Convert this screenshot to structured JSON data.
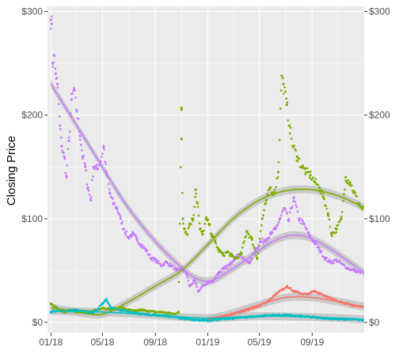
{
  "chart_data": {
    "type": "scatter",
    "title": "",
    "xlabel": "",
    "ylabel": "Closing Price",
    "x_ticks": [
      {
        "date": "2018-01-01",
        "label": "01/18"
      },
      {
        "date": "2018-05-01",
        "label": "05/18"
      },
      {
        "date": "2018-09-01",
        "label": "09/18"
      },
      {
        "date": "2019-01-01",
        "label": "01/19"
      },
      {
        "date": "2019-05-01",
        "label": "05/19"
      },
      {
        "date": "2019-09-01",
        "label": "09/19"
      }
    ],
    "y_ticks": [
      {
        "value": 0,
        "label": "$0"
      },
      {
        "value": 100,
        "label": "$100"
      },
      {
        "value": 200,
        "label": "$200"
      },
      {
        "value": 300,
        "label": "$300"
      }
    ],
    "xlim": [
      "2017-12-24",
      "2019-12-31"
    ],
    "ylim": [
      -10,
      305
    ],
    "secondary_y_axis": true,
    "grid": true,
    "legend": "none",
    "smooth_band_color": "#bdbdbd",
    "panel_background": "#ebebeb",
    "series": [
      {
        "color": "#c77cff",
        "points": [
          [
            "2018-01-01",
            292
          ],
          [
            "2018-01-03",
            288
          ],
          [
            "2018-01-05",
            250
          ],
          [
            "2018-01-08",
            258
          ],
          [
            "2018-01-12",
            240
          ],
          [
            "2018-01-16",
            230
          ],
          [
            "2018-01-22",
            190
          ],
          [
            "2018-01-26",
            170
          ],
          [
            "2018-02-01",
            160
          ],
          [
            "2018-02-06",
            140
          ],
          [
            "2018-02-12",
            175
          ],
          [
            "2018-02-18",
            215
          ],
          [
            "2018-02-24",
            225
          ],
          [
            "2018-03-02",
            205
          ],
          [
            "2018-03-10",
            180
          ],
          [
            "2018-03-16",
            160
          ],
          [
            "2018-03-22",
            150
          ],
          [
            "2018-03-28",
            130
          ],
          [
            "2018-04-04",
            118
          ],
          [
            "2018-04-10",
            150
          ],
          [
            "2018-04-18",
            148
          ],
          [
            "2018-04-26",
            155
          ],
          [
            "2018-05-04",
            170
          ],
          [
            "2018-05-10",
            145
          ],
          [
            "2018-05-18",
            125
          ],
          [
            "2018-05-26",
            115
          ],
          [
            "2018-06-04",
            110
          ],
          [
            "2018-06-12",
            100
          ],
          [
            "2018-06-20",
            90
          ],
          [
            "2018-06-30",
            82
          ],
          [
            "2018-07-10",
            85
          ],
          [
            "2018-07-20",
            80
          ],
          [
            "2018-07-30",
            75
          ],
          [
            "2018-08-10",
            70
          ],
          [
            "2018-08-22",
            62
          ],
          [
            "2018-09-02",
            60
          ],
          [
            "2018-09-14",
            55
          ],
          [
            "2018-09-26",
            58
          ],
          [
            "2018-10-08",
            55
          ],
          [
            "2018-10-20",
            50
          ],
          [
            "2018-11-01",
            52
          ],
          [
            "2018-11-12",
            48
          ],
          [
            "2018-11-20",
            35
          ],
          [
            "2018-12-01",
            40
          ],
          [
            "2018-12-10",
            30
          ],
          [
            "2018-12-20",
            35
          ],
          [
            "2019-01-02",
            38
          ],
          [
            "2019-01-14",
            40
          ],
          [
            "2019-01-26",
            48
          ],
          [
            "2019-02-08",
            52
          ],
          [
            "2019-02-20",
            55
          ],
          [
            "2019-03-04",
            62
          ],
          [
            "2019-03-16",
            65
          ],
          [
            "2019-03-28",
            60
          ],
          [
            "2019-04-10",
            58
          ],
          [
            "2019-04-22",
            70
          ],
          [
            "2019-05-04",
            78
          ],
          [
            "2019-05-16",
            80
          ],
          [
            "2019-05-28",
            85
          ],
          [
            "2019-06-08",
            90
          ],
          [
            "2019-06-18",
            100
          ],
          [
            "2019-06-28",
            110
          ],
          [
            "2019-07-08",
            98
          ],
          [
            "2019-07-20",
            120
          ],
          [
            "2019-08-01",
            100
          ],
          [
            "2019-08-12",
            95
          ],
          [
            "2019-08-24",
            85
          ],
          [
            "2019-09-05",
            78
          ],
          [
            "2019-09-18",
            70
          ],
          [
            "2019-10-01",
            62
          ],
          [
            "2019-10-14",
            58
          ],
          [
            "2019-10-28",
            60
          ],
          [
            "2019-11-10",
            56
          ],
          [
            "2019-11-24",
            52
          ],
          [
            "2019-12-08",
            50
          ],
          [
            "2019-12-22",
            48
          ]
        ],
        "trend": [
          [
            "2018-01-01",
            230
          ],
          [
            "2018-04-01",
            170
          ],
          [
            "2018-07-01",
            110
          ],
          [
            "2018-10-01",
            65
          ],
          [
            "2018-12-20",
            40
          ],
          [
            "2019-03-01",
            52
          ],
          [
            "2019-06-01",
            78
          ],
          [
            "2019-08-01",
            84
          ],
          [
            "2019-10-01",
            74
          ],
          [
            "2019-12-31",
            48
          ]
        ]
      },
      {
        "color": "#7cae00",
        "points": [
          [
            "2018-01-01",
            18
          ],
          [
            "2018-01-10",
            15
          ],
          [
            "2018-01-20",
            12
          ],
          [
            "2018-02-01",
            10
          ],
          [
            "2018-02-15",
            12
          ],
          [
            "2018-03-01",
            10
          ],
          [
            "2018-03-15",
            11
          ],
          [
            "2018-04-01",
            10
          ],
          [
            "2018-04-15",
            12
          ],
          [
            "2018-05-01",
            14
          ],
          [
            "2018-05-15",
            13
          ],
          [
            "2018-06-01",
            13
          ],
          [
            "2018-06-15",
            14
          ],
          [
            "2018-07-01",
            12
          ],
          [
            "2018-07-15",
            11
          ],
          [
            "2018-08-01",
            12
          ],
          [
            "2018-08-15",
            11
          ],
          [
            "2018-09-01",
            10
          ],
          [
            "2018-09-15",
            10
          ],
          [
            "2018-10-01",
            9
          ],
          [
            "2018-10-15",
            8
          ],
          [
            "2018-10-25",
            10
          ],
          [
            "2018-11-01",
            207
          ],
          [
            "2018-11-01",
            177
          ],
          [
            "2018-11-04",
            100
          ],
          [
            "2018-11-08",
            90
          ],
          [
            "2018-11-14",
            85
          ],
          [
            "2018-11-20",
            95
          ],
          [
            "2018-11-28",
            100
          ],
          [
            "2018-12-04",
            128
          ],
          [
            "2018-12-08",
            115
          ],
          [
            "2018-12-14",
            90
          ],
          [
            "2018-12-20",
            85
          ],
          [
            "2018-12-28",
            100
          ],
          [
            "2019-01-04",
            95
          ],
          [
            "2019-01-10",
            85
          ],
          [
            "2019-01-18",
            78
          ],
          [
            "2019-01-26",
            70
          ],
          [
            "2019-02-06",
            65
          ],
          [
            "2019-02-16",
            68
          ],
          [
            "2019-02-26",
            64
          ],
          [
            "2019-03-08",
            62
          ],
          [
            "2019-03-20",
            66
          ],
          [
            "2019-04-02",
            88
          ],
          [
            "2019-04-14",
            80
          ],
          [
            "2019-04-26",
            62
          ],
          [
            "2019-05-08",
            100
          ],
          [
            "2019-05-16",
            115
          ],
          [
            "2019-05-26",
            130
          ],
          [
            "2019-06-06",
            125
          ],
          [
            "2019-06-14",
            145
          ],
          [
            "2019-06-22",
            238
          ],
          [
            "2019-06-26",
            230
          ],
          [
            "2019-07-04",
            210
          ],
          [
            "2019-07-10",
            190
          ],
          [
            "2019-07-18",
            170
          ],
          [
            "2019-07-28",
            160
          ],
          [
            "2019-08-08",
            150
          ],
          [
            "2019-08-18",
            145
          ],
          [
            "2019-08-28",
            142
          ],
          [
            "2019-09-08",
            135
          ],
          [
            "2019-09-18",
            130
          ],
          [
            "2019-09-28",
            120
          ],
          [
            "2019-10-08",
            105
          ],
          [
            "2019-10-16",
            85
          ],
          [
            "2019-10-28",
            90
          ],
          [
            "2019-11-08",
            100
          ],
          [
            "2019-11-18",
            140
          ],
          [
            "2019-11-28",
            135
          ],
          [
            "2019-12-08",
            125
          ],
          [
            "2019-12-18",
            115
          ],
          [
            "2019-12-26",
            110
          ]
        ],
        "trend": [
          [
            "2018-01-01",
            14
          ],
          [
            "2018-03-01",
            10
          ],
          [
            "2018-05-01",
            8
          ],
          [
            "2018-07-01",
            20
          ],
          [
            "2018-09-01",
            35
          ],
          [
            "2018-11-01",
            50
          ],
          [
            "2019-01-01",
            75
          ],
          [
            "2019-03-01",
            100
          ],
          [
            "2019-05-01",
            118
          ],
          [
            "2019-07-01",
            127
          ],
          [
            "2019-09-01",
            128
          ],
          [
            "2019-11-01",
            122
          ],
          [
            "2019-12-31",
            111
          ]
        ]
      },
      {
        "color": "#f8766d",
        "points": [
          [
            "2019-01-02",
            3
          ],
          [
            "2019-02-01",
            5
          ],
          [
            "2019-03-01",
            8
          ],
          [
            "2019-04-01",
            12
          ],
          [
            "2019-05-01",
            16
          ],
          [
            "2019-05-20",
            20
          ],
          [
            "2019-06-10",
            28
          ],
          [
            "2019-06-25",
            32
          ],
          [
            "2019-07-05",
            35
          ],
          [
            "2019-07-20",
            30
          ],
          [
            "2019-08-05",
            28
          ],
          [
            "2019-08-20",
            27
          ],
          [
            "2019-09-05",
            30
          ],
          [
            "2019-09-20",
            28
          ],
          [
            "2019-10-05",
            25
          ],
          [
            "2019-10-20",
            22
          ],
          [
            "2019-11-05",
            20
          ],
          [
            "2019-11-20",
            18
          ],
          [
            "2019-12-05",
            16
          ],
          [
            "2019-12-25",
            15
          ]
        ],
        "trend": [
          [
            "2019-01-01",
            3
          ],
          [
            "2019-03-01",
            9
          ],
          [
            "2019-05-01",
            17
          ],
          [
            "2019-07-01",
            24
          ],
          [
            "2019-09-01",
            24
          ],
          [
            "2019-11-01",
            20
          ],
          [
            "2019-12-31",
            15
          ]
        ]
      },
      {
        "color": "#00bfc4",
        "points": [
          [
            "2018-01-01",
            10
          ],
          [
            "2018-01-20",
            12
          ],
          [
            "2018-02-10",
            11
          ],
          [
            "2018-03-01",
            12
          ],
          [
            "2018-03-20",
            10
          ],
          [
            "2018-04-10",
            9
          ],
          [
            "2018-05-01",
            18
          ],
          [
            "2018-05-10",
            22
          ],
          [
            "2018-05-20",
            14
          ],
          [
            "2018-06-10",
            12
          ],
          [
            "2018-07-01",
            10
          ],
          [
            "2018-08-01",
            8
          ],
          [
            "2018-09-01",
            7
          ],
          [
            "2018-10-01",
            6
          ],
          [
            "2018-11-01",
            4
          ],
          [
            "2018-12-01",
            2
          ],
          [
            "2019-01-01",
            2
          ],
          [
            "2019-02-01",
            3
          ],
          [
            "2019-03-01",
            4
          ],
          [
            "2019-04-01",
            5
          ],
          [
            "2019-05-01",
            6
          ],
          [
            "2019-06-01",
            7
          ],
          [
            "2019-07-01",
            7
          ],
          [
            "2019-08-01",
            6
          ],
          [
            "2019-09-01",
            5
          ],
          [
            "2019-10-01",
            4
          ],
          [
            "2019-11-01",
            3
          ],
          [
            "2019-12-01",
            3
          ],
          [
            "2019-12-28",
            2
          ]
        ],
        "trend": [
          [
            "2018-01-01",
            11
          ],
          [
            "2018-05-01",
            10
          ],
          [
            "2018-09-01",
            7
          ],
          [
            "2019-01-01",
            4
          ],
          [
            "2019-05-01",
            6
          ],
          [
            "2019-09-01",
            5
          ],
          [
            "2019-12-31",
            3
          ]
        ]
      }
    ]
  }
}
